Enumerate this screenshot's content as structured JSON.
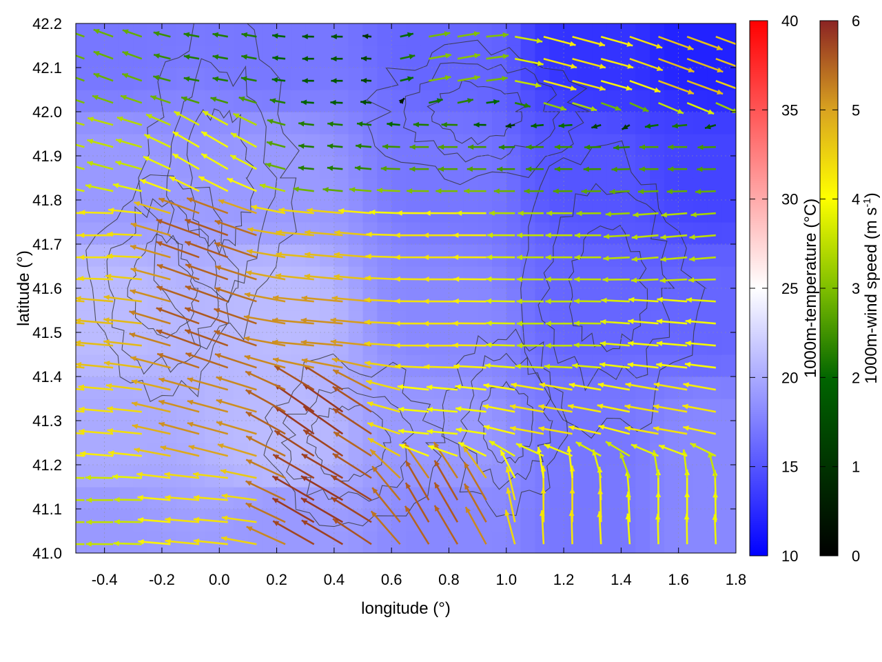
{
  "chart_data": {
    "type": "heatmap",
    "title": "",
    "xlabel": "longitude (°)",
    "ylabel": "latitude (°)",
    "xlim": [
      -0.5,
      1.8
    ],
    "ylim": [
      41.0,
      42.2
    ],
    "x_ticks": [
      "-0.4",
      "-0.2",
      "0.0",
      "0.2",
      "0.4",
      "0.6",
      "0.8",
      "1.0",
      "1.2",
      "1.4",
      "1.6",
      "1.8"
    ],
    "y_ticks": [
      "41.0",
      "41.1",
      "41.2",
      "41.3",
      "41.4",
      "41.5",
      "41.6",
      "41.7",
      "41.8",
      "41.9",
      "42.0",
      "42.1",
      "42.2"
    ],
    "grid": true,
    "layers": {
      "shading": "1000m-temperature",
      "vectors": "1000m-wind",
      "contours": "terrain"
    },
    "temperature_colorbar": {
      "label": "1000m-temperature (°C)",
      "range": [
        10,
        40
      ],
      "ticks": [
        "10",
        "15",
        "20",
        "25",
        "30",
        "35",
        "40"
      ],
      "colors": [
        "#0000ff",
        "#ffffff",
        "#ff0000"
      ]
    },
    "wind_colorbar": {
      "label_main": "1000m-wind speed (m s",
      "label_sup": "-1",
      "label_end": ")",
      "range": [
        0,
        6
      ],
      "ticks": [
        "0",
        "1",
        "2",
        "3",
        "4",
        "5",
        "6"
      ],
      "colors": [
        "#000000",
        "#006400",
        "#7fbf00",
        "#ffff00",
        "#daa520",
        "#8b2323"
      ]
    },
    "temperature_field_points": [
      {
        "lon": -0.4,
        "lat": 42.15,
        "t": 17
      },
      {
        "lon": 0.2,
        "lat": 42.15,
        "t": 17
      },
      {
        "lon": 0.8,
        "lat": 42.15,
        "t": 16
      },
      {
        "lon": 1.3,
        "lat": 42.15,
        "t": 13
      },
      {
        "lon": 1.7,
        "lat": 42.15,
        "t": 12
      },
      {
        "lon": -0.4,
        "lat": 41.85,
        "t": 19
      },
      {
        "lon": 0.2,
        "lat": 41.85,
        "t": 19
      },
      {
        "lon": 0.8,
        "lat": 41.85,
        "t": 17
      },
      {
        "lon": 1.3,
        "lat": 41.85,
        "t": 15
      },
      {
        "lon": 1.7,
        "lat": 41.85,
        "t": 14
      },
      {
        "lon": -0.4,
        "lat": 41.55,
        "t": 21
      },
      {
        "lon": 0.2,
        "lat": 41.55,
        "t": 21
      },
      {
        "lon": 0.8,
        "lat": 41.55,
        "t": 18
      },
      {
        "lon": 1.3,
        "lat": 41.55,
        "t": 16
      },
      {
        "lon": 1.7,
        "lat": 41.55,
        "t": 16
      },
      {
        "lon": -0.4,
        "lat": 41.25,
        "t": 20
      },
      {
        "lon": 0.2,
        "lat": 41.25,
        "t": 21
      },
      {
        "lon": 0.8,
        "lat": 41.25,
        "t": 19
      },
      {
        "lon": 1.3,
        "lat": 41.25,
        "t": 17
      },
      {
        "lon": 1.7,
        "lat": 41.25,
        "t": 18
      },
      {
        "lon": -0.4,
        "lat": 41.05,
        "t": 19
      },
      {
        "lon": 0.2,
        "lat": 41.05,
        "t": 19
      },
      {
        "lon": 0.8,
        "lat": 41.05,
        "t": 18
      },
      {
        "lon": 1.3,
        "lat": 41.05,
        "t": 17
      },
      {
        "lon": 1.7,
        "lat": 41.05,
        "t": 18
      }
    ],
    "wind_samples": [
      {
        "lon": -0.4,
        "lat": 42.1,
        "speed": 2.2,
        "dir_deg": 160
      },
      {
        "lon": 0.0,
        "lat": 42.1,
        "speed": 1.5,
        "dir_deg": 170
      },
      {
        "lon": 0.4,
        "lat": 42.1,
        "speed": 1.0,
        "dir_deg": 180
      },
      {
        "lon": 0.8,
        "lat": 42.1,
        "speed": 2.5,
        "dir_deg": 10
      },
      {
        "lon": 1.2,
        "lat": 42.1,
        "speed": 4.0,
        "dir_deg": 345
      },
      {
        "lon": 1.6,
        "lat": 42.1,
        "speed": 4.5,
        "dir_deg": 340
      },
      {
        "lon": -0.4,
        "lat": 41.9,
        "speed": 3.0,
        "dir_deg": 165
      },
      {
        "lon": 0.0,
        "lat": 41.9,
        "speed": 3.5,
        "dir_deg": 150
      },
      {
        "lon": 0.4,
        "lat": 41.9,
        "speed": 1.5,
        "dir_deg": 175
      },
      {
        "lon": 0.8,
        "lat": 41.9,
        "speed": 2.0,
        "dir_deg": 180
      },
      {
        "lon": 1.2,
        "lat": 41.9,
        "speed": 1.8,
        "dir_deg": 180
      },
      {
        "lon": 1.6,
        "lat": 41.9,
        "speed": 2.0,
        "dir_deg": 180
      },
      {
        "lon": -0.4,
        "lat": 41.7,
        "speed": 4.0,
        "dir_deg": 180
      },
      {
        "lon": 0.0,
        "lat": 41.7,
        "speed": 5.5,
        "dir_deg": 160
      },
      {
        "lon": 0.4,
        "lat": 41.7,
        "speed": 4.5,
        "dir_deg": 175
      },
      {
        "lon": 0.8,
        "lat": 41.7,
        "speed": 4.0,
        "dir_deg": 180
      },
      {
        "lon": 1.2,
        "lat": 41.7,
        "speed": 3.0,
        "dir_deg": 180
      },
      {
        "lon": 1.6,
        "lat": 41.7,
        "speed": 3.0,
        "dir_deg": 185
      },
      {
        "lon": -0.4,
        "lat": 41.5,
        "speed": 4.5,
        "dir_deg": 175
      },
      {
        "lon": 0.0,
        "lat": 41.5,
        "speed": 5.5,
        "dir_deg": 160
      },
      {
        "lon": 0.4,
        "lat": 41.5,
        "speed": 5.0,
        "dir_deg": 175
      },
      {
        "lon": 0.8,
        "lat": 41.5,
        "speed": 4.0,
        "dir_deg": 180
      },
      {
        "lon": 1.2,
        "lat": 41.5,
        "speed": 3.0,
        "dir_deg": 180
      },
      {
        "lon": 1.6,
        "lat": 41.5,
        "speed": 3.5,
        "dir_deg": 175
      },
      {
        "lon": -0.4,
        "lat": 41.3,
        "speed": 4.0,
        "dir_deg": 175
      },
      {
        "lon": 0.0,
        "lat": 41.3,
        "speed": 5.0,
        "dir_deg": 165
      },
      {
        "lon": 0.4,
        "lat": 41.3,
        "speed": 5.8,
        "dir_deg": 145
      },
      {
        "lon": 0.8,
        "lat": 41.3,
        "speed": 3.5,
        "dir_deg": 175
      },
      {
        "lon": 1.2,
        "lat": 41.3,
        "speed": 4.0,
        "dir_deg": 170
      },
      {
        "lon": 1.6,
        "lat": 41.3,
        "speed": 4.0,
        "dir_deg": 170
      },
      {
        "lon": -0.4,
        "lat": 41.1,
        "speed": 3.0,
        "dir_deg": 180
      },
      {
        "lon": 0.0,
        "lat": 41.1,
        "speed": 4.0,
        "dir_deg": 175
      },
      {
        "lon": 0.4,
        "lat": 41.1,
        "speed": 5.8,
        "dir_deg": 150
      },
      {
        "lon": 0.8,
        "lat": 41.1,
        "speed": 5.5,
        "dir_deg": 120
      },
      {
        "lon": 1.2,
        "lat": 41.1,
        "speed": 4.0,
        "dir_deg": 90
      },
      {
        "lon": 1.6,
        "lat": 41.1,
        "speed": 3.5,
        "dir_deg": 90
      }
    ]
  }
}
